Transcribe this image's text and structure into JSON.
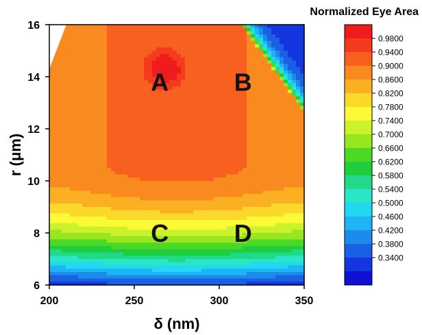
{
  "chart_data": {
    "type": "heatmap",
    "title": "Normalized Eye Area",
    "xlabel": "δ (nm)",
    "ylabel": "r (μm)",
    "xlim": [
      200,
      350
    ],
    "ylim": [
      6,
      16
    ],
    "x_ticks": [
      "200",
      "250",
      "300",
      "350"
    ],
    "y_ticks": [
      "6",
      "8",
      "10",
      "12",
      "14",
      "16"
    ],
    "colorbar_ticks": [
      "0.9800",
      "0.9400",
      "0.9000",
      "0.8600",
      "0.8200",
      "0.7800",
      "0.7400",
      "0.7000",
      "0.6600",
      "0.6200",
      "0.5800",
      "0.5400",
      "0.5000",
      "0.4600",
      "0.4200",
      "0.3800",
      "0.3400"
    ],
    "colorbar_colors": [
      "#ee1c1c",
      "#f53a1e",
      "#f86020",
      "#f98a1f",
      "#fbb021",
      "#fbd92a",
      "#fcfa36",
      "#ccf22b",
      "#98e620",
      "#4cd824",
      "#1fce3c",
      "#22d98a",
      "#29e6c7",
      "#22d8f0",
      "#1fb4f6",
      "#1e8ae9",
      "#1a60e5",
      "#1436e0",
      "#1010d2"
    ],
    "annotations": [
      {
        "label": "A",
        "x": 265,
        "y": 13.8
      },
      {
        "label": "B",
        "x": 314,
        "y": 13.8
      },
      {
        "label": "C",
        "x": 265,
        "y": 8.0
      },
      {
        "label": "D",
        "x": 314,
        "y": 8.0
      }
    ],
    "grid": false,
    "legend": "right"
  }
}
